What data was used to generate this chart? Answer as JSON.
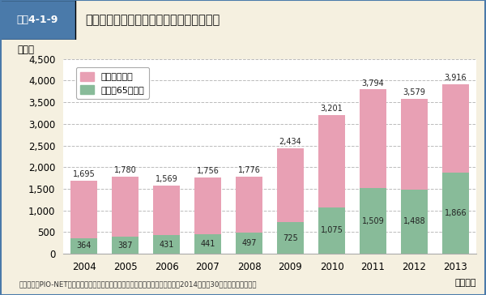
{
  "years": [
    "2004",
    "2005",
    "2006",
    "2007",
    "2008",
    "2009",
    "2010",
    "2011",
    "2012",
    "2013"
  ],
  "total": [
    1695,
    1780,
    1569,
    1756,
    1776,
    2434,
    3201,
    3794,
    3579,
    3916
  ],
  "elderly": [
    364,
    387,
    431,
    441,
    497,
    725,
    1075,
    1509,
    1488,
    1866
  ],
  "bar_color_total": "#e8a0b4",
  "bar_color_elderly": "#88bb99",
  "title": "「カタログ通販」に関する相談は増加傾向",
  "header_label": "図表4-1-9",
  "ylabel": "（件）",
  "xlabel": "（年度）",
  "ylim": [
    0,
    4500
  ],
  "yticks": [
    0,
    500,
    1000,
    1500,
    2000,
    2500,
    3000,
    3500,
    4000,
    4500
  ],
  "legend_total": "カタログ通販",
  "legend_elderly": "うち、65歳以上",
  "footnote": "（備考）　PIO-NETに登録された「カタログ通販」に関する消費生活相談情報（2014年４月30日までの登録分）。",
  "bg_color": "#f5f0e0",
  "plot_bg_color": "#ffffff",
  "header_bg_color": "#4a7aaa",
  "header_text_color": "#ffffff",
  "header_band_color": "#c8d8e8",
  "title_color": "#111111",
  "grid_color": "#bbbbbb",
  "border_color": "#4a7aaa"
}
